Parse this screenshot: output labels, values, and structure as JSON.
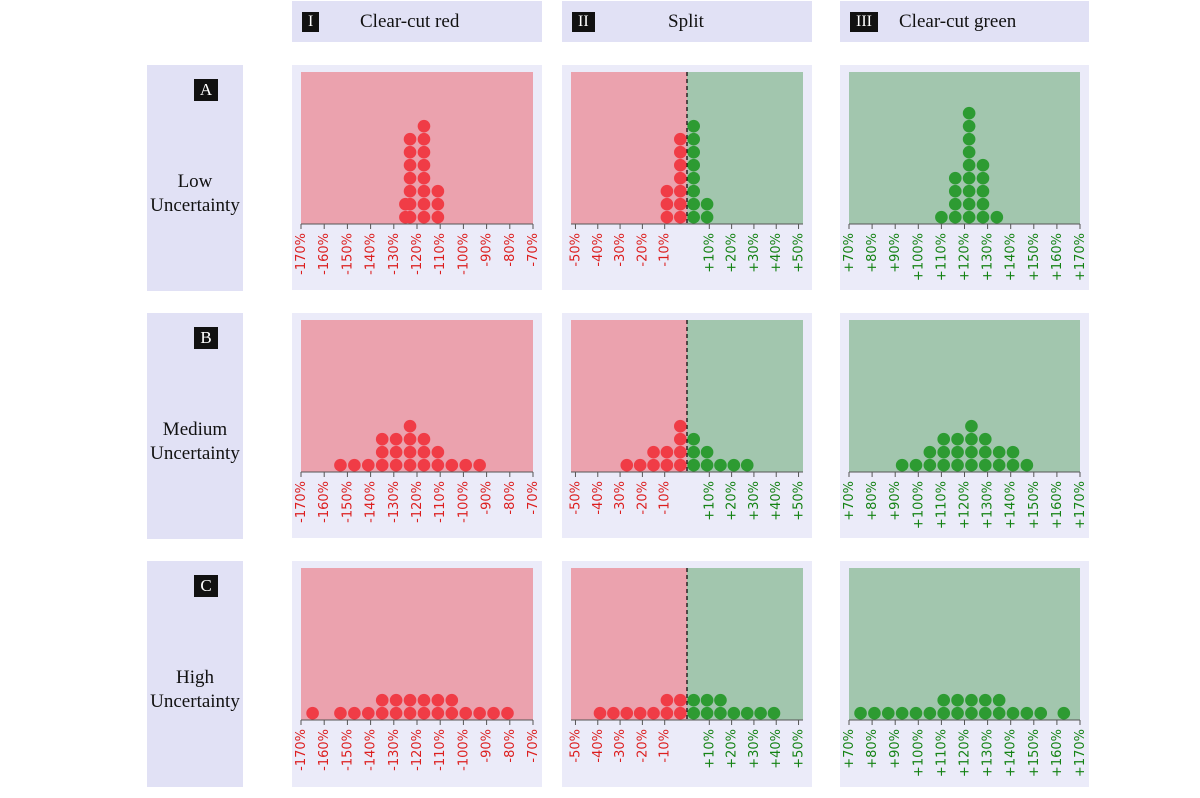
{
  "columns": [
    {
      "roman": "I",
      "title": "Clear-cut red"
    },
    {
      "roman": "II",
      "title": "Split"
    },
    {
      "roman": "III",
      "title": "Clear-cut green"
    }
  ],
  "rows": [
    {
      "letter": "A",
      "title_lines": [
        "Low",
        "Uncertainty"
      ]
    },
    {
      "letter": "B",
      "title_lines": [
        "Medium",
        "Uncertainty"
      ]
    },
    {
      "letter": "C",
      "title_lines": [
        "High",
        "Uncertainty"
      ]
    }
  ],
  "colors": {
    "red_area": "#eba2ae",
    "green_area": "#a2c6ae",
    "red_dot": "#f03c46",
    "green_dot": "#2d9b32",
    "red_tick": "#dc1e1e",
    "green_tick": "#148214"
  },
  "chart_data": [
    {
      "type": "scatter",
      "subtype": "dot-histogram",
      "row": "A",
      "column": "I",
      "area": "red",
      "tick_labels": [
        "-170%",
        "-160%",
        "-150%",
        "-140%",
        "-130%",
        "-120%",
        "-110%",
        "-100%",
        "-90%",
        "-80%",
        "-70%"
      ],
      "xlim": [
        -170,
        -70
      ],
      "stacks": [
        {
          "x": -125,
          "count": 2
        },
        {
          "x": -123,
          "count": 7
        },
        {
          "x": -117,
          "count": 8
        },
        {
          "x": -111,
          "count": 3
        }
      ]
    },
    {
      "type": "scatter",
      "subtype": "dot-histogram",
      "row": "A",
      "column": "II",
      "area": "split",
      "tick_labels": [
        "-50%",
        "-40%",
        "-30%",
        "-20%",
        "-10%",
        "+10%",
        "+20%",
        "+30%",
        "+40%",
        "+50%"
      ],
      "xlim": [
        -52,
        52
      ],
      "divider": 0,
      "stacks": [
        {
          "x": -9,
          "count": 3
        },
        {
          "x": -3,
          "count": 7
        },
        {
          "x": 3,
          "count": 8
        },
        {
          "x": 9,
          "count": 2
        }
      ]
    },
    {
      "type": "scatter",
      "subtype": "dot-histogram",
      "row": "A",
      "column": "III",
      "area": "green",
      "tick_labels": [
        "+70%",
        "+80%",
        "+90%",
        "+100%",
        "+110%",
        "+120%",
        "+130%",
        "+140%",
        "+150%",
        "+160%",
        "+170%"
      ],
      "xlim": [
        70,
        170
      ],
      "stacks": [
        {
          "x": 110,
          "count": 1
        },
        {
          "x": 116,
          "count": 4
        },
        {
          "x": 122,
          "count": 9
        },
        {
          "x": 128,
          "count": 5
        },
        {
          "x": 134,
          "count": 1
        }
      ]
    },
    {
      "type": "scatter",
      "subtype": "dot-histogram",
      "row": "B",
      "column": "I",
      "area": "red",
      "tick_labels": [
        "-170%",
        "-160%",
        "-150%",
        "-140%",
        "-130%",
        "-120%",
        "-110%",
        "-100%",
        "-90%",
        "-80%",
        "-70%"
      ],
      "xlim": [
        -170,
        -70
      ],
      "stacks": [
        {
          "x": -153,
          "count": 1
        },
        {
          "x": -147,
          "count": 1
        },
        {
          "x": -141,
          "count": 1
        },
        {
          "x": -135,
          "count": 3
        },
        {
          "x": -129,
          "count": 3
        },
        {
          "x": -123,
          "count": 4
        },
        {
          "x": -117,
          "count": 3
        },
        {
          "x": -111,
          "count": 2
        },
        {
          "x": -105,
          "count": 1
        },
        {
          "x": -99,
          "count": 1
        },
        {
          "x": -93,
          "count": 1
        }
      ]
    },
    {
      "type": "scatter",
      "subtype": "dot-histogram",
      "row": "B",
      "column": "II",
      "area": "split",
      "tick_labels": [
        "-50%",
        "-40%",
        "-30%",
        "-20%",
        "-10%",
        "+10%",
        "+20%",
        "+30%",
        "+40%",
        "+50%"
      ],
      "xlim": [
        -52,
        52
      ],
      "divider": 0,
      "stacks": [
        {
          "x": -27,
          "count": 1
        },
        {
          "x": -21,
          "count": 1
        },
        {
          "x": -15,
          "count": 2
        },
        {
          "x": -9,
          "count": 2
        },
        {
          "x": -3,
          "count": 4
        },
        {
          "x": 3,
          "count": 3
        },
        {
          "x": 9,
          "count": 2
        },
        {
          "x": 15,
          "count": 1
        },
        {
          "x": 21,
          "count": 1
        },
        {
          "x": 27,
          "count": 1
        }
      ]
    },
    {
      "type": "scatter",
      "subtype": "dot-histogram",
      "row": "B",
      "column": "III",
      "area": "green",
      "tick_labels": [
        "+70%",
        "+80%",
        "+90%",
        "+100%",
        "+110%",
        "+120%",
        "+130%",
        "+140%",
        "+150%",
        "+160%",
        "+170%"
      ],
      "xlim": [
        70,
        170
      ],
      "stacks": [
        {
          "x": 93,
          "count": 1
        },
        {
          "x": 99,
          "count": 1
        },
        {
          "x": 105,
          "count": 2
        },
        {
          "x": 111,
          "count": 3
        },
        {
          "x": 117,
          "count": 3
        },
        {
          "x": 123,
          "count": 4
        },
        {
          "x": 129,
          "count": 3
        },
        {
          "x": 135,
          "count": 2
        },
        {
          "x": 141,
          "count": 2
        },
        {
          "x": 147,
          "count": 1
        }
      ]
    },
    {
      "type": "scatter",
      "subtype": "dot-histogram",
      "row": "C",
      "column": "I",
      "area": "red",
      "tick_labels": [
        "-170%",
        "-160%",
        "-150%",
        "-140%",
        "-130%",
        "-120%",
        "-110%",
        "-100%",
        "-90%",
        "-80%",
        "-70%"
      ],
      "xlim": [
        -170,
        -70
      ],
      "stacks": [
        {
          "x": -165,
          "count": 1
        },
        {
          "x": -153,
          "count": 1
        },
        {
          "x": -147,
          "count": 1
        },
        {
          "x": -141,
          "count": 1
        },
        {
          "x": -135,
          "count": 2
        },
        {
          "x": -129,
          "count": 2
        },
        {
          "x": -123,
          "count": 2
        },
        {
          "x": -117,
          "count": 2
        },
        {
          "x": -111,
          "count": 2
        },
        {
          "x": -105,
          "count": 2
        },
        {
          "x": -99,
          "count": 1
        },
        {
          "x": -93,
          "count": 1
        },
        {
          "x": -87,
          "count": 1
        },
        {
          "x": -81,
          "count": 1
        }
      ]
    },
    {
      "type": "scatter",
      "subtype": "dot-histogram",
      "row": "C",
      "column": "II",
      "area": "split",
      "tick_labels": [
        "-50%",
        "-40%",
        "-30%",
        "-20%",
        "-10%",
        "+10%",
        "+20%",
        "+30%",
        "+40%",
        "+50%"
      ],
      "xlim": [
        -52,
        52
      ],
      "divider": 0,
      "stacks": [
        {
          "x": -39,
          "count": 1
        },
        {
          "x": -33,
          "count": 1
        },
        {
          "x": -27,
          "count": 1
        },
        {
          "x": -21,
          "count": 1
        },
        {
          "x": -15,
          "count": 1
        },
        {
          "x": -9,
          "count": 2
        },
        {
          "x": -3,
          "count": 2
        },
        {
          "x": 3,
          "count": 2
        },
        {
          "x": 9,
          "count": 2
        },
        {
          "x": 15,
          "count": 2
        },
        {
          "x": 21,
          "count": 1
        },
        {
          "x": 27,
          "count": 1
        },
        {
          "x": 33,
          "count": 1
        },
        {
          "x": 39,
          "count": 1
        }
      ]
    },
    {
      "type": "scatter",
      "subtype": "dot-histogram",
      "row": "C",
      "column": "III",
      "area": "green",
      "tick_labels": [
        "+70%",
        "+80%",
        "+90%",
        "+100%",
        "+110%",
        "+120%",
        "+130%",
        "+140%",
        "+150%",
        "+160%",
        "+170%"
      ],
      "xlim": [
        70,
        170
      ],
      "stacks": [
        {
          "x": 75,
          "count": 1
        },
        {
          "x": 81,
          "count": 1
        },
        {
          "x": 87,
          "count": 1
        },
        {
          "x": 93,
          "count": 1
        },
        {
          "x": 99,
          "count": 1
        },
        {
          "x": 105,
          "count": 1
        },
        {
          "x": 111,
          "count": 2
        },
        {
          "x": 117,
          "count": 2
        },
        {
          "x": 123,
          "count": 2
        },
        {
          "x": 129,
          "count": 2
        },
        {
          "x": 135,
          "count": 2
        },
        {
          "x": 141,
          "count": 1
        },
        {
          "x": 147,
          "count": 1
        },
        {
          "x": 153,
          "count": 1
        },
        {
          "x": 163,
          "count": 1
        }
      ]
    }
  ]
}
